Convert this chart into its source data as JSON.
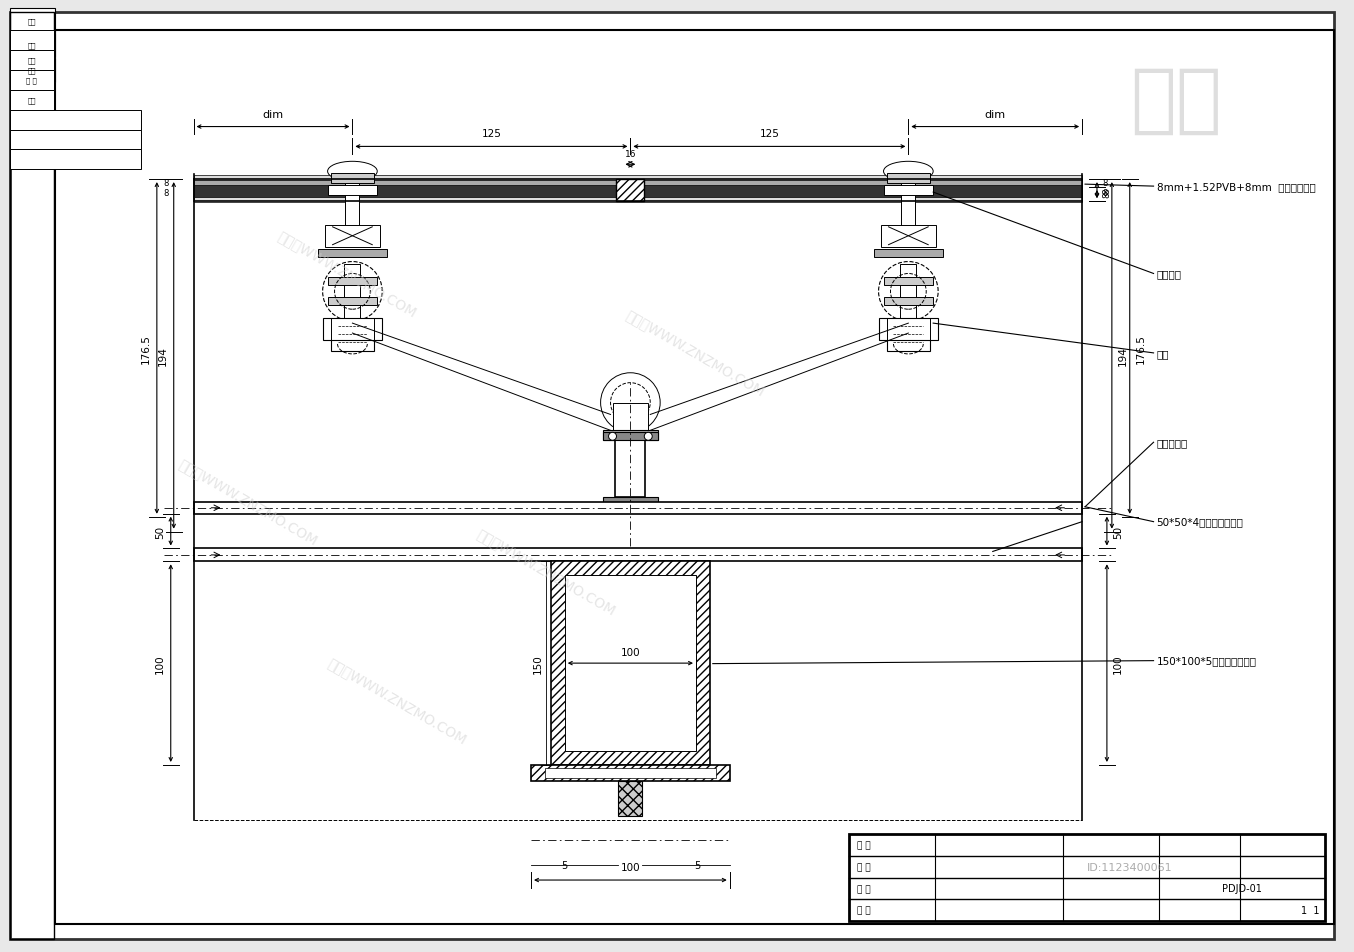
{
  "bg_color": "#e8e8e8",
  "paper_color": "#ffffff",
  "line_color": "#000000",
  "dim_color": "#000000",
  "annotations": {
    "glass": "8mm+1.52PVB+8mm  钢化夹胶玻璃",
    "bolt1": "预埋螺栓",
    "clamp": "驳接",
    "support": "驳接爪组件",
    "tube50": "50*50*4钢管（通长管）",
    "tube150": "150*100*5钢管（通长管）"
  },
  "dims": {
    "top_dim_left": "dim",
    "span1": "125",
    "center_dim": "16",
    "span2": "125",
    "top_dim_right": "dim",
    "left_194": "194",
    "left_1765": "176.5",
    "right_194": "194",
    "right_1765": "176.5",
    "left_8_top": "8",
    "left_8_bot": "8",
    "right_8_top": "8",
    "right_8_bot": "8",
    "dim50_left": "50",
    "dim50_right": "50",
    "dim100_left": "100",
    "dim100_right": "100",
    "dim150": "150",
    "dim100_inner": "100",
    "dim100_bottom": "100",
    "dim5_left": "5",
    "dim5_right": "5"
  },
  "watermark_texts": [
    "知末网WWW.ZNZMO.COM",
    "znzmo.com",
    "知末网WWW.ZNZMO.COM"
  ],
  "id_text": "ID:1123400061",
  "logo_text": "知末",
  "title_block": {
    "row1_col1": "图 号",
    "row2_col1": "图 名",
    "row3_col1": "设 计",
    "row4_col1": "校 对",
    "pdjd": "PDJD-01",
    "sheet": "1  1"
  }
}
